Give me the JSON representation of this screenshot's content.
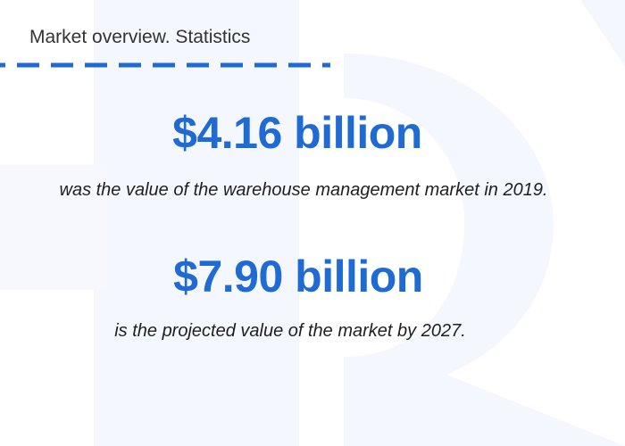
{
  "header": {
    "title": "Market overview. Statistics"
  },
  "stats": [
    {
      "value": "$4.16 billion",
      "description": "was the value of the warehouse management market in 2019."
    },
    {
      "value": "$7.90 billion",
      "description": "is the projected value of the market by 2027."
    }
  ],
  "colors": {
    "accent": "#1f6ad3",
    "title_text": "#333333",
    "body_text": "#1f1f1f",
    "watermark": "#f4f7fd",
    "background": "#ffffff"
  },
  "icons": {
    "background": "watermark-logo-icon"
  }
}
